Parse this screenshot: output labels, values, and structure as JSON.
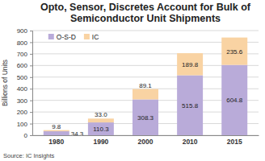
{
  "chart_data": {
    "type": "bar",
    "title": "Opto, Sensor, Discretes Account for Bulk of Semiconductor Unit Shipments",
    "y_label": "Billions of Units",
    "annotations": [
      "Source: IC Insights"
    ],
    "categories": [
      "1980",
      "1990",
      "2000",
      "2010",
      "2015"
    ],
    "series": [
      {
        "name": "O-S-D",
        "color": "#b9abd9",
        "values": [
          34.3,
          110.3,
          308.3,
          515.8,
          604.8
        ],
        "value_labels": [
          "34.3",
          "110.3",
          "308.3",
          "515.8",
          "604.8"
        ]
      },
      {
        "name": "IC",
        "color": "#f9d3a3",
        "values": [
          9.8,
          33.0,
          89.1,
          189.8,
          235.6
        ],
        "value_labels": [
          "9.8",
          "33.0",
          "89.1",
          "189.8",
          "235.6"
        ]
      }
    ],
    "stacked": true,
    "data_labels": true,
    "legend": "upper left",
    "grid": true,
    "ylim": [
      0,
      900
    ],
    "yticks": [
      0,
      100,
      200,
      300,
      400,
      500,
      600,
      700,
      800,
      900
    ]
  }
}
